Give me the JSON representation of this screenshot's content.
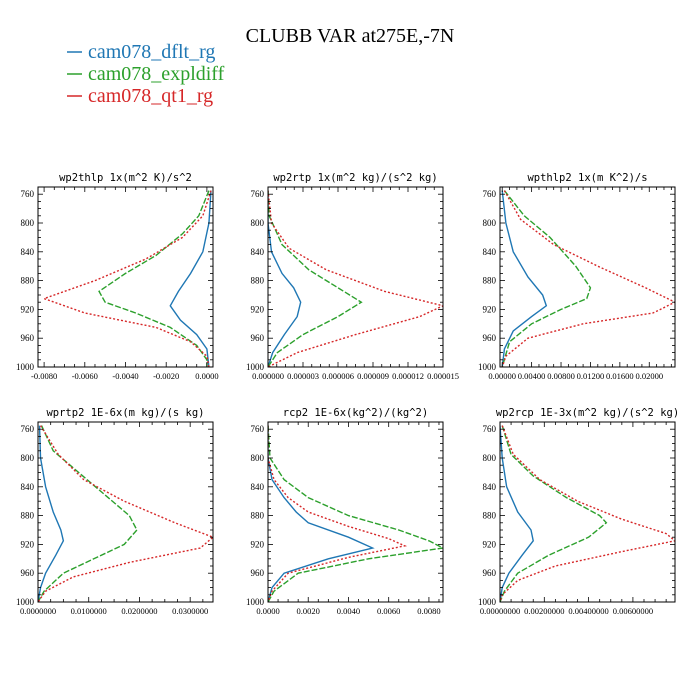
{
  "figure": {
    "title": "CLUBB VAR at275E,-7N",
    "legend": [
      {
        "label": "cam078_dflt_rg",
        "color": "#1f77b4",
        "dash": "solid"
      },
      {
        "label": "cam078_expldiff",
        "color": "#2ca02c",
        "dash": "dash"
      },
      {
        "label": "cam078_qt1_rg",
        "color": "#d62728",
        "dash": "dot"
      }
    ]
  },
  "chart_data": [
    {
      "type": "line",
      "title": "wp2thlp  1x(m^2 K)/s^2",
      "xlim": [
        -0.0083,
        0.0003
      ],
      "ylim": [
        750,
        1000
      ],
      "xticks": [
        -0.008,
        -0.006,
        -0.004,
        -0.002,
        0.0
      ],
      "xtick_labels": [
        "-0.0080",
        "-0.0060",
        "-0.0040",
        "-0.0020",
        "0.0000"
      ],
      "yticks": [
        760,
        800,
        840,
        880,
        920,
        960,
        1000
      ],
      "series": [
        {
          "name": "cam078_dflt_rg",
          "points": [
            [
              0.0002,
              755
            ],
            [
              0.0001,
              800
            ],
            [
              -0.0002,
              840
            ],
            [
              -0.0008,
              870
            ],
            [
              -0.0014,
              895
            ],
            [
              -0.0018,
              915
            ],
            [
              -0.0013,
              935
            ],
            [
              -0.0005,
              955
            ],
            [
              0.0,
              975
            ],
            [
              0.0001,
              1000
            ]
          ]
        },
        {
          "name": "cam078_expldiff",
          "points": [
            [
              0.0001,
              755
            ],
            [
              -0.0004,
              790
            ],
            [
              -0.0012,
              815
            ],
            [
              -0.0025,
              845
            ],
            [
              -0.004,
              870
            ],
            [
              -0.0053,
              895
            ],
            [
              -0.005,
              910
            ],
            [
              -0.0035,
              925
            ],
            [
              -0.0018,
              945
            ],
            [
              -0.0005,
              970
            ],
            [
              0.0,
              990
            ],
            [
              0.0,
              1000
            ]
          ]
        },
        {
          "name": "cam078_qt1_rg",
          "points": [
            [
              0.0002,
              755
            ],
            [
              -0.0002,
              790
            ],
            [
              -0.0012,
              820
            ],
            [
              -0.003,
              850
            ],
            [
              -0.0055,
              880
            ],
            [
              -0.008,
              905
            ],
            [
              -0.006,
              925
            ],
            [
              -0.0025,
              945
            ],
            [
              -0.0008,
              965
            ],
            [
              0.0,
              985
            ],
            [
              0.0001,
              1000
            ]
          ]
        }
      ]
    },
    {
      "type": "line",
      "title": "wp2rtp  1x(m^2 kg)/(s^2 kg)",
      "xlim": [
        0.0,
        1.5e-05
      ],
      "ylim": [
        750,
        1000
      ],
      "xticks": [
        0.0,
        3e-06,
        6e-06,
        9e-06,
        1.2e-05,
        1.5e-05
      ],
      "xtick_labels": [
        "0.000000",
        "0.000003",
        "0.000006",
        "0.000009",
        "0.000012",
        "0.000015"
      ],
      "yticks": [
        760,
        800,
        840,
        880,
        920,
        960,
        1000
      ],
      "series": [
        {
          "name": "cam078_dflt_rg",
          "points": [
            [
              0.0,
              755
            ],
            [
              0.0,
              800
            ],
            [
              3e-07,
              840
            ],
            [
              1.2e-06,
              870
            ],
            [
              2.2e-06,
              890
            ],
            [
              2.8e-06,
              910
            ],
            [
              2.5e-06,
              930
            ],
            [
              1.4e-06,
              955
            ],
            [
              4e-07,
              980
            ],
            [
              0.0,
              1000
            ]
          ]
        },
        {
          "name": "cam078_expldiff",
          "points": [
            [
              0.0,
              755
            ],
            [
              1e-07,
              790
            ],
            [
              1.2e-06,
              830
            ],
            [
              3.5e-06,
              865
            ],
            [
              6.5e-06,
              895
            ],
            [
              8e-06,
              910
            ],
            [
              6e-06,
              930
            ],
            [
              3e-06,
              955
            ],
            [
              8e-07,
              980
            ],
            [
              0.0,
              1000
            ]
          ]
        },
        {
          "name": "cam078_qt1_rg",
          "points": [
            [
              0.0,
              755
            ],
            [
              3e-07,
              800
            ],
            [
              1.8e-06,
              835
            ],
            [
              5e-06,
              865
            ],
            [
              1e-05,
              895
            ],
            [
              1.5e-05,
              915
            ],
            [
              1.3e-05,
              930
            ],
            [
              7.5e-06,
              955
            ],
            [
              2.5e-06,
              980
            ],
            [
              0.0,
              1000
            ]
          ]
        }
      ]
    },
    {
      "type": "line",
      "title": "wpthlp2  1x(m K^2)/s",
      "xlim": [
        -0.0003,
        0.0235
      ],
      "ylim": [
        750,
        1000
      ],
      "xticks": [
        0.0,
        0.004,
        0.008,
        0.012,
        0.016,
        0.02
      ],
      "xtick_labels": [
        "0.00000",
        "0.00400",
        "0.00800",
        "0.01200",
        "0.01600",
        "0.02000"
      ],
      "yticks": [
        760,
        800,
        840,
        880,
        920,
        960,
        1000
      ],
      "series": [
        {
          "name": "cam078_dflt_rg",
          "points": [
            [
              0.0,
              755
            ],
            [
              0.0005,
              800
            ],
            [
              0.0015,
              840
            ],
            [
              0.0035,
              875
            ],
            [
              0.0055,
              900
            ],
            [
              0.006,
              915
            ],
            [
              0.004,
              930
            ],
            [
              0.0015,
              950
            ],
            [
              0.0003,
              975
            ],
            [
              0.0,
              1000
            ]
          ]
        },
        {
          "name": "cam078_expldiff",
          "points": [
            [
              0.0003,
              755
            ],
            [
              0.003,
              790
            ],
            [
              0.0065,
              820
            ],
            [
              0.01,
              860
            ],
            [
              0.012,
              890
            ],
            [
              0.0115,
              905
            ],
            [
              0.008,
              920
            ],
            [
              0.004,
              940
            ],
            [
              0.001,
              965
            ],
            [
              0.0,
              1000
            ]
          ]
        },
        {
          "name": "cam078_qt1_rg",
          "points": [
            [
              0.0003,
              755
            ],
            [
              0.0025,
              795
            ],
            [
              0.007,
              830
            ],
            [
              0.013,
              860
            ],
            [
              0.0195,
              890
            ],
            [
              0.0235,
              910
            ],
            [
              0.0205,
              925
            ],
            [
              0.011,
              940
            ],
            [
              0.0035,
              960
            ],
            [
              0.0005,
              985
            ],
            [
              0.0,
              1000
            ]
          ]
        }
      ]
    },
    {
      "type": "line",
      "title": "wprtp2  1E-6x(m kg)/(s kg)",
      "xlim": [
        0.0,
        0.0345
      ],
      "ylim": [
        750,
        1000
      ],
      "xticks": [
        0.0,
        0.01,
        0.02,
        0.03
      ],
      "xtick_labels": [
        "0.0000000",
        "0.0100000",
        "0.0200000",
        "0.0300000"
      ],
      "yticks": [
        760,
        800,
        840,
        880,
        920,
        960,
        1000
      ],
      "series": [
        {
          "name": "cam078_dflt_rg",
          "points": [
            [
              0.0003,
              755
            ],
            [
              0.0005,
              800
            ],
            [
              0.0015,
              840
            ],
            [
              0.003,
              875
            ],
            [
              0.0045,
              900
            ],
            [
              0.005,
              915
            ],
            [
              0.0035,
              935
            ],
            [
              0.0015,
              960
            ],
            [
              0.0005,
              980
            ],
            [
              0.0,
              1000
            ]
          ]
        },
        {
          "name": "cam078_expldiff",
          "points": [
            [
              0.0007,
              755
            ],
            [
              0.003,
              790
            ],
            [
              0.008,
              820
            ],
            [
              0.013,
              850
            ],
            [
              0.018,
              880
            ],
            [
              0.0195,
              900
            ],
            [
              0.017,
              920
            ],
            [
              0.011,
              940
            ],
            [
              0.005,
              960
            ],
            [
              0.0012,
              985
            ],
            [
              0.0,
              1000
            ]
          ]
        },
        {
          "name": "cam078_qt1_rg",
          "points": [
            [
              0.0005,
              755
            ],
            [
              0.004,
              795
            ],
            [
              0.009,
              830
            ],
            [
              0.017,
              860
            ],
            [
              0.027,
              890
            ],
            [
              0.0345,
              910
            ],
            [
              0.032,
              925
            ],
            [
              0.018,
              945
            ],
            [
              0.007,
              965
            ],
            [
              0.0015,
              985
            ],
            [
              0.0,
              1000
            ]
          ]
        }
      ]
    },
    {
      "type": "line",
      "title": "rcp2  1E-6x(kg^2)/(kg^2)",
      "xlim": [
        0.0,
        0.0087
      ],
      "ylim": [
        750,
        1000
      ],
      "xticks": [
        0.0,
        0.002,
        0.004,
        0.006,
        0.008
      ],
      "xtick_labels": [
        "0.0000",
        "0.0020",
        "0.0040",
        "0.0060",
        "0.0080"
      ],
      "yticks": [
        760,
        800,
        840,
        880,
        920,
        960,
        1000
      ],
      "series": [
        {
          "name": "cam078_dflt_rg",
          "points": [
            [
              0.0,
              755
            ],
            [
              0.0,
              800
            ],
            [
              0.0002,
              830
            ],
            [
              0.0008,
              855
            ],
            [
              0.0014,
              875
            ],
            [
              0.002,
              890
            ],
            [
              0.004,
              910
            ],
            [
              0.0052,
              925
            ],
            [
              0.003,
              940
            ],
            [
              0.0008,
              960
            ],
            [
              0.0002,
              980
            ],
            [
              0.0,
              1000
            ]
          ]
        },
        {
          "name": "cam078_expldiff",
          "points": [
            [
              0.0,
              755
            ],
            [
              0.0001,
              800
            ],
            [
              0.0008,
              830
            ],
            [
              0.002,
              855
            ],
            [
              0.004,
              880
            ],
            [
              0.0065,
              900
            ],
            [
              0.008,
              915
            ],
            [
              0.0087,
              925
            ],
            [
              0.005,
              940
            ],
            [
              0.0015,
              960
            ],
            [
              0.0003,
              985
            ],
            [
              0.0,
              1000
            ]
          ]
        },
        {
          "name": "cam078_qt1_rg",
          "points": [
            [
              0.0,
              755
            ],
            [
              0.0,
              800
            ],
            [
              0.0003,
              830
            ],
            [
              0.001,
              855
            ],
            [
              0.002,
              875
            ],
            [
              0.004,
              895
            ],
            [
              0.006,
              912
            ],
            [
              0.0068,
              922
            ],
            [
              0.004,
              938
            ],
            [
              0.001,
              960
            ],
            [
              0.0002,
              985
            ],
            [
              0.0,
              1000
            ]
          ]
        }
      ]
    },
    {
      "type": "line",
      "title": "wp2rcp  1E-3x(m^2 kg)/(s^2 kg)",
      "xlim": [
        0.0,
        0.0079
      ],
      "ylim": [
        750,
        1000
      ],
      "xticks": [
        0.0,
        0.002,
        0.004,
        0.006
      ],
      "xtick_labels": [
        "0.00000000",
        "0.00200000",
        "0.00400000",
        "0.00600000"
      ],
      "yticks": [
        760,
        800,
        840,
        880,
        920,
        960,
        1000
      ],
      "series": [
        {
          "name": "cam078_dflt_rg",
          "points": [
            [
              0.0,
              755
            ],
            [
              0.0001,
              800
            ],
            [
              0.0003,
              840
            ],
            [
              0.0008,
              875
            ],
            [
              0.0014,
              900
            ],
            [
              0.0015,
              915
            ],
            [
              0.001,
              935
            ],
            [
              0.0004,
              960
            ],
            [
              0.0001,
              980
            ],
            [
              0.0,
              1000
            ]
          ]
        },
        {
          "name": "cam078_expldiff",
          "points": [
            [
              0.0001,
              755
            ],
            [
              0.0005,
              795
            ],
            [
              0.0015,
              825
            ],
            [
              0.003,
              855
            ],
            [
              0.0045,
              880
            ],
            [
              0.0048,
              890
            ],
            [
              0.004,
              910
            ],
            [
              0.0022,
              935
            ],
            [
              0.0008,
              960
            ],
            [
              0.0002,
              985
            ],
            [
              0.0,
              1000
            ]
          ]
        },
        {
          "name": "cam078_qt1_rg",
          "points": [
            [
              0.0001,
              755
            ],
            [
              0.0006,
              795
            ],
            [
              0.0018,
              830
            ],
            [
              0.0035,
              860
            ],
            [
              0.0055,
              885
            ],
            [
              0.0075,
              905
            ],
            [
              0.0079,
              915
            ],
            [
              0.0055,
              930
            ],
            [
              0.0025,
              950
            ],
            [
              0.0008,
              970
            ],
            [
              0.0001,
              990
            ],
            [
              0.0,
              1000
            ]
          ]
        }
      ]
    }
  ]
}
